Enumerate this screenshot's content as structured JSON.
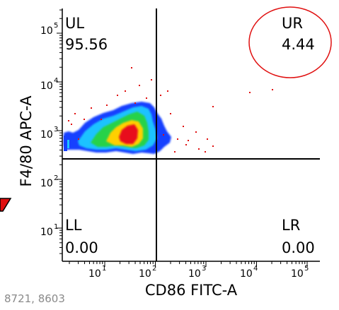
{
  "chart_data": {
    "type": "heatmap",
    "title": "",
    "xlabel": "CD86 FITC-A",
    "ylabel": "F4/80 APC-A",
    "x_scale": "log",
    "y_scale": "log",
    "xlim": [
      1,
      600000
    ],
    "ylim": [
      1,
      200000
    ],
    "x_ticks": [
      "10^1",
      "10^2",
      "10^3",
      "10^4",
      "10^5"
    ],
    "y_ticks": [
      "10^1",
      "10^2",
      "10^3",
      "10^4",
      "10^5"
    ],
    "gate": {
      "x": 160,
      "y": 280
    },
    "quadrants": [
      {
        "name": "UL",
        "value": "95.56"
      },
      {
        "name": "UR",
        "value": "4.44"
      },
      {
        "name": "LL",
        "value": "0.00"
      },
      {
        "name": "LR",
        "value": "0.00"
      }
    ],
    "density_levels": [
      {
        "level": "high",
        "color": "#e8101a"
      },
      {
        "level": "mid-high",
        "color": "#ffd000"
      },
      {
        "level": "mid",
        "color": "#27d24a"
      },
      {
        "level": "low-mid",
        "color": "#1ec3ff"
      },
      {
        "level": "low",
        "color": "#1540ff"
      }
    ],
    "population_center": {
      "x": 70,
      "y": 1100
    },
    "annotations": [
      "circle around UR quadrant",
      "red arrow at left"
    ]
  },
  "footer": {
    "coords": "8721, 8603"
  },
  "colors": {
    "circle": "#e01010",
    "arrow": "#e01010",
    "outlier": "#e01010"
  }
}
